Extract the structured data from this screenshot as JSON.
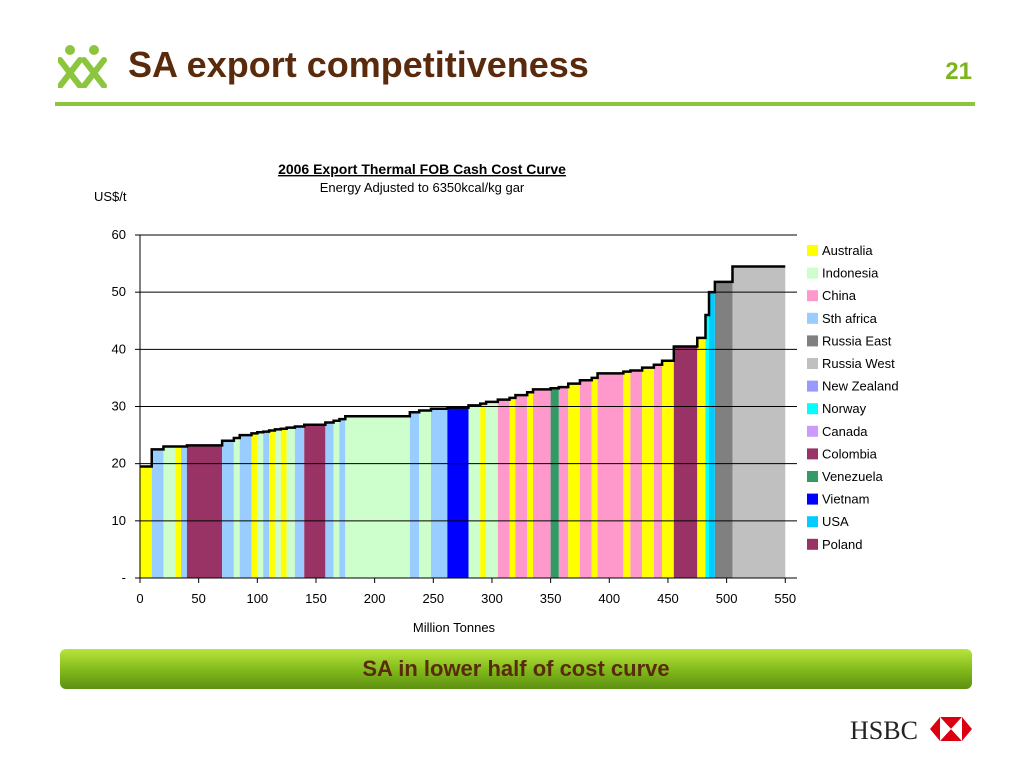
{
  "slide": {
    "title": "SA export competitiveness",
    "page_number": "21",
    "banner_text": "SA in lower half of cost curve",
    "brand": "HSBC",
    "colors": {
      "title": "#5a2a0c",
      "accent": "#8cc63f",
      "page_number": "#7ab51d",
      "hsbc_red": "#db0011"
    }
  },
  "chart_data": {
    "type": "area",
    "title": "2006 Export Thermal FOB Cash Cost Curve",
    "subtitle": "Energy Adjusted to 6350kcal/kg gar",
    "ylabel": "US$/t",
    "xlabel": "Million Tonnes",
    "xlim": [
      0,
      560
    ],
    "ylim": [
      0,
      60
    ],
    "x_ticks": [
      "0",
      "50",
      "100",
      "150",
      "200",
      "250",
      "300",
      "350",
      "400",
      "450",
      "500",
      "550"
    ],
    "x_tick_values": [
      0,
      50,
      100,
      150,
      200,
      250,
      300,
      350,
      400,
      450,
      500,
      550
    ],
    "y_ticks": [
      "-",
      "10",
      "20",
      "30",
      "40",
      "50",
      "60"
    ],
    "y_tick_values": [
      0,
      10,
      20,
      30,
      40,
      50,
      60
    ],
    "gridlines": "horizontal",
    "legend_position": "right",
    "legend": [
      {
        "name": "Australia",
        "color": "#ffff00"
      },
      {
        "name": "Indonesia",
        "color": "#ccffcc"
      },
      {
        "name": "China",
        "color": "#ff99cc"
      },
      {
        "name": "Sth africa",
        "color": "#99ccff"
      },
      {
        "name": "Russia East",
        "color": "#808080"
      },
      {
        "name": "Russia West",
        "color": "#c0c0c0"
      },
      {
        "name": "New Zealand",
        "color": "#9999ff"
      },
      {
        "name": "Norway",
        "color": "#00ffff"
      },
      {
        "name": "Canada",
        "color": "#cc99ff"
      },
      {
        "name": "Colombia",
        "color": "#993366"
      },
      {
        "name": "Venezuela",
        "color": "#339966"
      },
      {
        "name": "Vietnam",
        "color": "#0000ff"
      },
      {
        "name": "USA",
        "color": "#00ccff"
      },
      {
        "name": "Poland",
        "color": "#993366"
      }
    ],
    "segments": [
      {
        "country": "Australia",
        "x0": 0,
        "x1": 10,
        "y": 19.5
      },
      {
        "country": "Sth africa",
        "x0": 10,
        "x1": 20,
        "y": 22.5
      },
      {
        "country": "Indonesia",
        "x0": 20,
        "x1": 30,
        "y": 23
      },
      {
        "country": "Australia",
        "x0": 30,
        "x1": 35,
        "y": 23
      },
      {
        "country": "Sth africa",
        "x0": 35,
        "x1": 40,
        "y": 23
      },
      {
        "country": "Colombia",
        "x0": 40,
        "x1": 70,
        "y": 23.2
      },
      {
        "country": "Sth africa",
        "x0": 70,
        "x1": 80,
        "y": 24
      },
      {
        "country": "Indonesia",
        "x0": 80,
        "x1": 85,
        "y": 24.5
      },
      {
        "country": "Sth africa",
        "x0": 85,
        "x1": 95,
        "y": 25
      },
      {
        "country": "Australia",
        "x0": 95,
        "x1": 100,
        "y": 25.3
      },
      {
        "country": "Indonesia",
        "x0": 100,
        "x1": 105,
        "y": 25.5
      },
      {
        "country": "Sth africa",
        "x0": 105,
        "x1": 110,
        "y": 25.6
      },
      {
        "country": "Australia",
        "x0": 110,
        "x1": 115,
        "y": 25.8
      },
      {
        "country": "Indonesia",
        "x0": 115,
        "x1": 120,
        "y": 26
      },
      {
        "country": "Australia",
        "x0": 120,
        "x1": 125,
        "y": 26.1
      },
      {
        "country": "Indonesia",
        "x0": 125,
        "x1": 132,
        "y": 26.3
      },
      {
        "country": "Sth africa",
        "x0": 132,
        "x1": 140,
        "y": 26.5
      },
      {
        "country": "Colombia",
        "x0": 140,
        "x1": 158,
        "y": 26.8
      },
      {
        "country": "Sth africa",
        "x0": 158,
        "x1": 165,
        "y": 27.2
      },
      {
        "country": "Indonesia",
        "x0": 165,
        "x1": 170,
        "y": 27.5
      },
      {
        "country": "Sth africa",
        "x0": 170,
        "x1": 175,
        "y": 27.8
      },
      {
        "country": "Indonesia",
        "x0": 175,
        "x1": 230,
        "y": 28.3
      },
      {
        "country": "Sth africa",
        "x0": 230,
        "x1": 238,
        "y": 29
      },
      {
        "country": "Indonesia",
        "x0": 238,
        "x1": 248,
        "y": 29.3
      },
      {
        "country": "Sth africa",
        "x0": 248,
        "x1": 262,
        "y": 29.6
      },
      {
        "country": "Vietnam",
        "x0": 262,
        "x1": 280,
        "y": 29.8
      },
      {
        "country": "Indonesia",
        "x0": 280,
        "x1": 290,
        "y": 30.2
      },
      {
        "country": "Australia",
        "x0": 290,
        "x1": 295,
        "y": 30.5
      },
      {
        "country": "Indonesia",
        "x0": 295,
        "x1": 305,
        "y": 30.8
      },
      {
        "country": "China",
        "x0": 305,
        "x1": 315,
        "y": 31.2
      },
      {
        "country": "Australia",
        "x0": 315,
        "x1": 320,
        "y": 31.5
      },
      {
        "country": "China",
        "x0": 320,
        "x1": 330,
        "y": 32
      },
      {
        "country": "Australia",
        "x0": 330,
        "x1": 335,
        "y": 32.5
      },
      {
        "country": "China",
        "x0": 335,
        "x1": 350,
        "y": 33
      },
      {
        "country": "Venezuela",
        "x0": 350,
        "x1": 357,
        "y": 33.2
      },
      {
        "country": "China",
        "x0": 357,
        "x1": 365,
        "y": 33.4
      },
      {
        "country": "Australia",
        "x0": 365,
        "x1": 375,
        "y": 34
      },
      {
        "country": "China",
        "x0": 375,
        "x1": 385,
        "y": 34.6
      },
      {
        "country": "Australia",
        "x0": 385,
        "x1": 390,
        "y": 35
      },
      {
        "country": "China",
        "x0": 390,
        "x1": 412,
        "y": 35.8
      },
      {
        "country": "Australia",
        "x0": 412,
        "x1": 418,
        "y": 36.1
      },
      {
        "country": "China",
        "x0": 418,
        "x1": 428,
        "y": 36.3
      },
      {
        "country": "Australia",
        "x0": 428,
        "x1": 438,
        "y": 36.8
      },
      {
        "country": "China",
        "x0": 438,
        "x1": 445,
        "y": 37.3
      },
      {
        "country": "Australia",
        "x0": 445,
        "x1": 455,
        "y": 38
      },
      {
        "country": "Colombia",
        "x0": 455,
        "x1": 475,
        "y": 40.5
      },
      {
        "country": "Australia",
        "x0": 475,
        "x1": 482,
        "y": 42
      },
      {
        "country": "Norway",
        "x0": 482,
        "x1": 485,
        "y": 46
      },
      {
        "country": "USA",
        "x0": 485,
        "x1": 490,
        "y": 50
      },
      {
        "country": "Russia East",
        "x0": 490,
        "x1": 505,
        "y": 51.8
      },
      {
        "country": "Russia West",
        "x0": 505,
        "x1": 550,
        "y": 54.5
      }
    ]
  }
}
